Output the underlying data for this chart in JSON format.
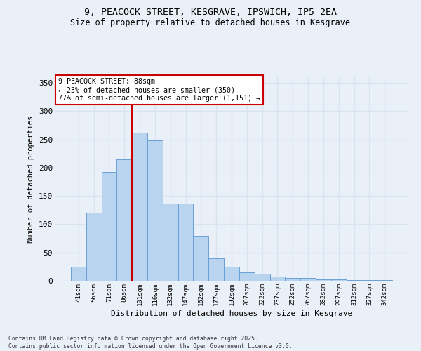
{
  "title_line1": "9, PEACOCK STREET, KESGRAVE, IPSWICH, IP5 2EA",
  "title_line2": "Size of property relative to detached houses in Kesgrave",
  "xlabel": "Distribution of detached houses by size in Kesgrave",
  "ylabel": "Number of detached properties",
  "categories": [
    "41sqm",
    "56sqm",
    "71sqm",
    "86sqm",
    "101sqm",
    "116sqm",
    "132sqm",
    "147sqm",
    "162sqm",
    "177sqm",
    "192sqm",
    "207sqm",
    "222sqm",
    "237sqm",
    "252sqm",
    "267sqm",
    "282sqm",
    "297sqm",
    "312sqm",
    "327sqm",
    "342sqm"
  ],
  "values": [
    25,
    120,
    192,
    215,
    262,
    248,
    136,
    136,
    80,
    40,
    25,
    15,
    12,
    8,
    5,
    5,
    3,
    2,
    1,
    1,
    1
  ],
  "bar_color": "#b8d4ee",
  "bar_edge_color": "#6a9fd8",
  "annotation_text": "9 PEACOCK STREET: 88sqm\n← 23% of detached houses are smaller (350)\n77% of semi-detached houses are larger (1,151) →",
  "annotation_box_color": "#ffffff",
  "annotation_box_edge_color": "#cc0000",
  "vline_color": "#cc0000",
  "vline_x_index": 3,
  "ylim": [
    0,
    360
  ],
  "yticks": [
    0,
    50,
    100,
    150,
    200,
    250,
    300,
    350
  ],
  "background_color": "#eaf0f8",
  "grid_color": "#d8e4f0",
  "footer_text": "Contains HM Land Registry data © Crown copyright and database right 2025.\nContains public sector information licensed under the Open Government Licence v3.0."
}
